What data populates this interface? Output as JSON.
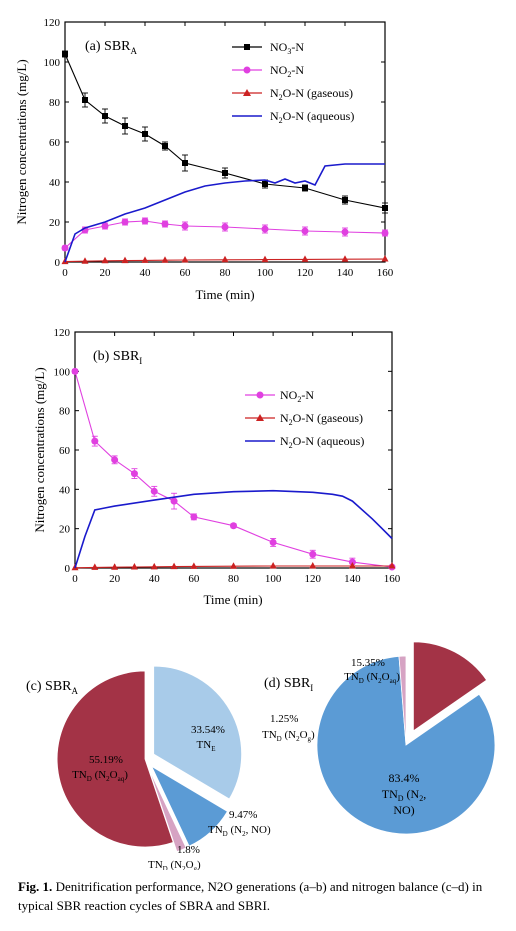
{
  "chart_data": [
    {
      "type": "line",
      "panel": "(a) SBRA",
      "ylabel": "Nitrogen concentrations (mg/L)",
      "xlabel": "Time (min)",
      "xlim": [
        0,
        160
      ],
      "ylim": [
        0,
        120
      ],
      "xticks": [
        0,
        20,
        40,
        60,
        80,
        100,
        120,
        140,
        160
      ],
      "yticks": [
        0,
        20,
        40,
        60,
        80,
        100,
        120
      ],
      "series": [
        {
          "name": "NO3-N",
          "marker": "square",
          "color": "#000000",
          "x": [
            0,
            10,
            20,
            30,
            40,
            50,
            60,
            80,
            100,
            120,
            140,
            160
          ],
          "y": [
            104,
            81,
            73,
            68,
            64,
            58,
            49.5,
            44.5,
            39,
            37,
            31,
            27
          ],
          "err": [
            1.5,
            3.5,
            3.5,
            4,
            3.5,
            2,
            4,
            2.5,
            2,
            1.5,
            2,
            2.5
          ]
        },
        {
          "name": "NO2-N",
          "marker": "circle",
          "color": "#e040e0",
          "x": [
            0,
            10,
            20,
            30,
            40,
            50,
            60,
            80,
            100,
            120,
            140,
            160
          ],
          "y": [
            7,
            16,
            18,
            20,
            20.5,
            19,
            18,
            17.5,
            16.5,
            15.5,
            15,
            14.5
          ],
          "err": [
            1,
            1.5,
            1.5,
            1.5,
            1.5,
            1.5,
            2,
            2,
            2,
            2,
            2,
            1.5
          ]
        },
        {
          "name": "N2O-N (gaseous)",
          "marker": "triangle",
          "color": "#cc2222",
          "x": [
            0,
            10,
            20,
            30,
            40,
            50,
            60,
            80,
            100,
            120,
            140,
            160
          ],
          "y": [
            0.2,
            0.4,
            0.6,
            0.7,
            0.8,
            0.9,
            1.0,
            1.1,
            1.2,
            1.3,
            1.4,
            1.5
          ]
        },
        {
          "name": "N2O-N (aqueous)",
          "marker": "none",
          "color": "#1a1acc",
          "x": [
            0,
            5,
            10,
            20,
            30,
            40,
            50,
            60,
            70,
            80,
            90,
            100,
            105,
            110,
            115,
            120,
            125,
            130,
            140,
            150,
            160
          ],
          "y": [
            0,
            14,
            17,
            20,
            24,
            27,
            31,
            35,
            38,
            39.5,
            40.5,
            41,
            39.5,
            41.5,
            39.5,
            40.5,
            38.5,
            48,
            49,
            49,
            49
          ]
        }
      ]
    },
    {
      "type": "line",
      "panel": "(b) SBRI",
      "ylabel": "Nitrogen concentrations (mg/L)",
      "xlabel": "Time (min)",
      "xlim": [
        0,
        160
      ],
      "ylim": [
        0,
        120
      ],
      "xticks": [
        0,
        20,
        40,
        60,
        80,
        100,
        120,
        140,
        160
      ],
      "yticks": [
        0,
        20,
        40,
        60,
        80,
        100,
        120
      ],
      "series": [
        {
          "name": "NO2-N",
          "marker": "circle",
          "color": "#e040e0",
          "x": [
            0,
            10,
            20,
            30,
            40,
            50,
            60,
            80,
            100,
            120,
            140,
            160
          ],
          "y": [
            100,
            64.5,
            55,
            48,
            39,
            34,
            26,
            21.5,
            13,
            7,
            3,
            0.5
          ],
          "err": [
            1,
            2.5,
            2,
            2.5,
            2.5,
            4,
            1.5,
            1,
            2,
            2,
            2,
            0.5
          ]
        },
        {
          "name": "N2O-N (gaseous)",
          "marker": "triangle",
          "color": "#cc2222",
          "x": [
            0,
            10,
            20,
            30,
            40,
            50,
            60,
            80,
            100,
            120,
            140,
            160
          ],
          "y": [
            0.1,
            0.3,
            0.4,
            0.5,
            0.6,
            0.7,
            0.8,
            0.9,
            1.0,
            1.0,
            1.0,
            1.0
          ]
        },
        {
          "name": "N2O-N (aqueous)",
          "marker": "none",
          "color": "#1a1acc",
          "x": [
            0,
            5,
            10,
            15,
            20,
            40,
            60,
            80,
            100,
            120,
            130,
            135,
            140,
            150,
            160
          ],
          "y": [
            0,
            16,
            29.5,
            30.5,
            31.5,
            34.5,
            37.5,
            38.8,
            39.3,
            38.5,
            37.5,
            36.5,
            34,
            25,
            15
          ]
        }
      ]
    },
    {
      "type": "pie",
      "panel": "(c) SBRA",
      "slices": [
        {
          "label": "TNE",
          "value": 33.54,
          "text": "33.54%",
          "color": "#a8cbe9"
        },
        {
          "label": "TND (N2, NO)",
          "value": 9.47,
          "text": "9.47%",
          "color": "#5b9bd5"
        },
        {
          "label": "TND (N2Og)",
          "value": 1.8,
          "text": "1.8%",
          "color": "#d6a3c3"
        },
        {
          "label": "TND (N2Oaq)",
          "value": 55.19,
          "text": "55.19%",
          "color": "#a33346"
        }
      ]
    },
    {
      "type": "pie",
      "panel": "(d) SBRI",
      "slices": [
        {
          "label": "TND (N2Oaq)",
          "value": 15.35,
          "text": "15.35%",
          "color": "#a33346"
        },
        {
          "label": "TND (N2, NO)",
          "value": 83.4,
          "text": "83.4%",
          "color": "#5b9bd5"
        },
        {
          "label": "TND (N2Og)",
          "value": 1.25,
          "text": "1.25%",
          "color": "#d6a3c3"
        }
      ]
    }
  ],
  "caption": {
    "fig_label": "Fig. 1.",
    "text": "Denitrification performance, N2O generations (a–b) and nitrogen balance (c–d) in typical SBR reaction cycles of SBRA and SBRI."
  }
}
